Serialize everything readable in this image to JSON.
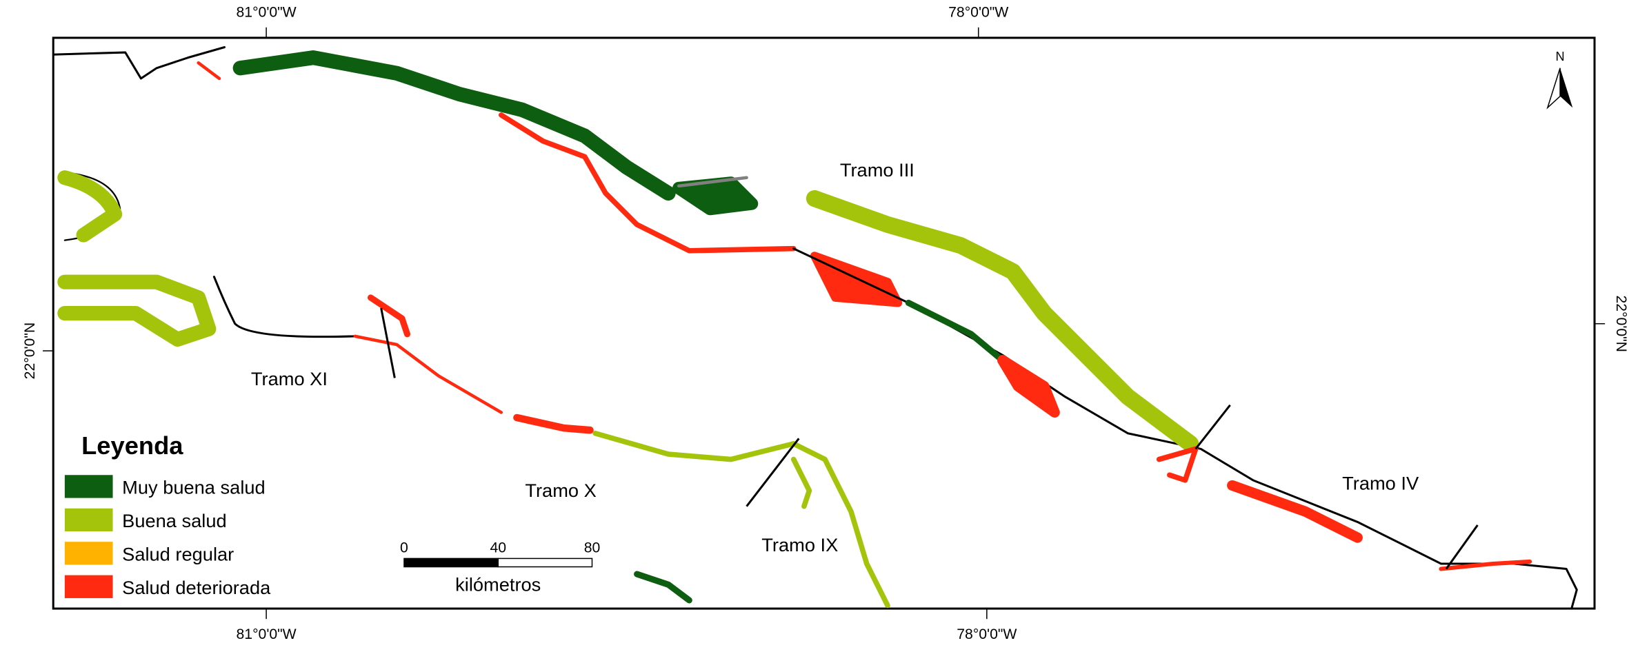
{
  "map": {
    "coordinates": {
      "top": [
        "81°0'0\"W",
        "78°0'0\"W"
      ],
      "bottom": [
        "81°0'0\"W",
        "78°0'0\"W"
      ],
      "left": "22°0'0\"N",
      "right": "22°0'0\"N"
    },
    "north": "N",
    "sections": [
      "Tramo III",
      "Tramo XI",
      "Tramo X",
      "Tramo IX",
      "Tramo IV"
    ],
    "legend": {
      "title": "Leyenda",
      "items": [
        {
          "label": "Muy buena salud",
          "color": "#0d5e10"
        },
        {
          "label": "Buena salud",
          "color": "#a3c40a"
        },
        {
          "label": "Salud regular",
          "color": "#ffb300"
        },
        {
          "label": "Salud deteriorada",
          "color": "#ff2a0f"
        }
      ]
    },
    "scale_bar": {
      "ticks": [
        "0",
        "40",
        "80"
      ],
      "unit": "kilómetros"
    }
  }
}
